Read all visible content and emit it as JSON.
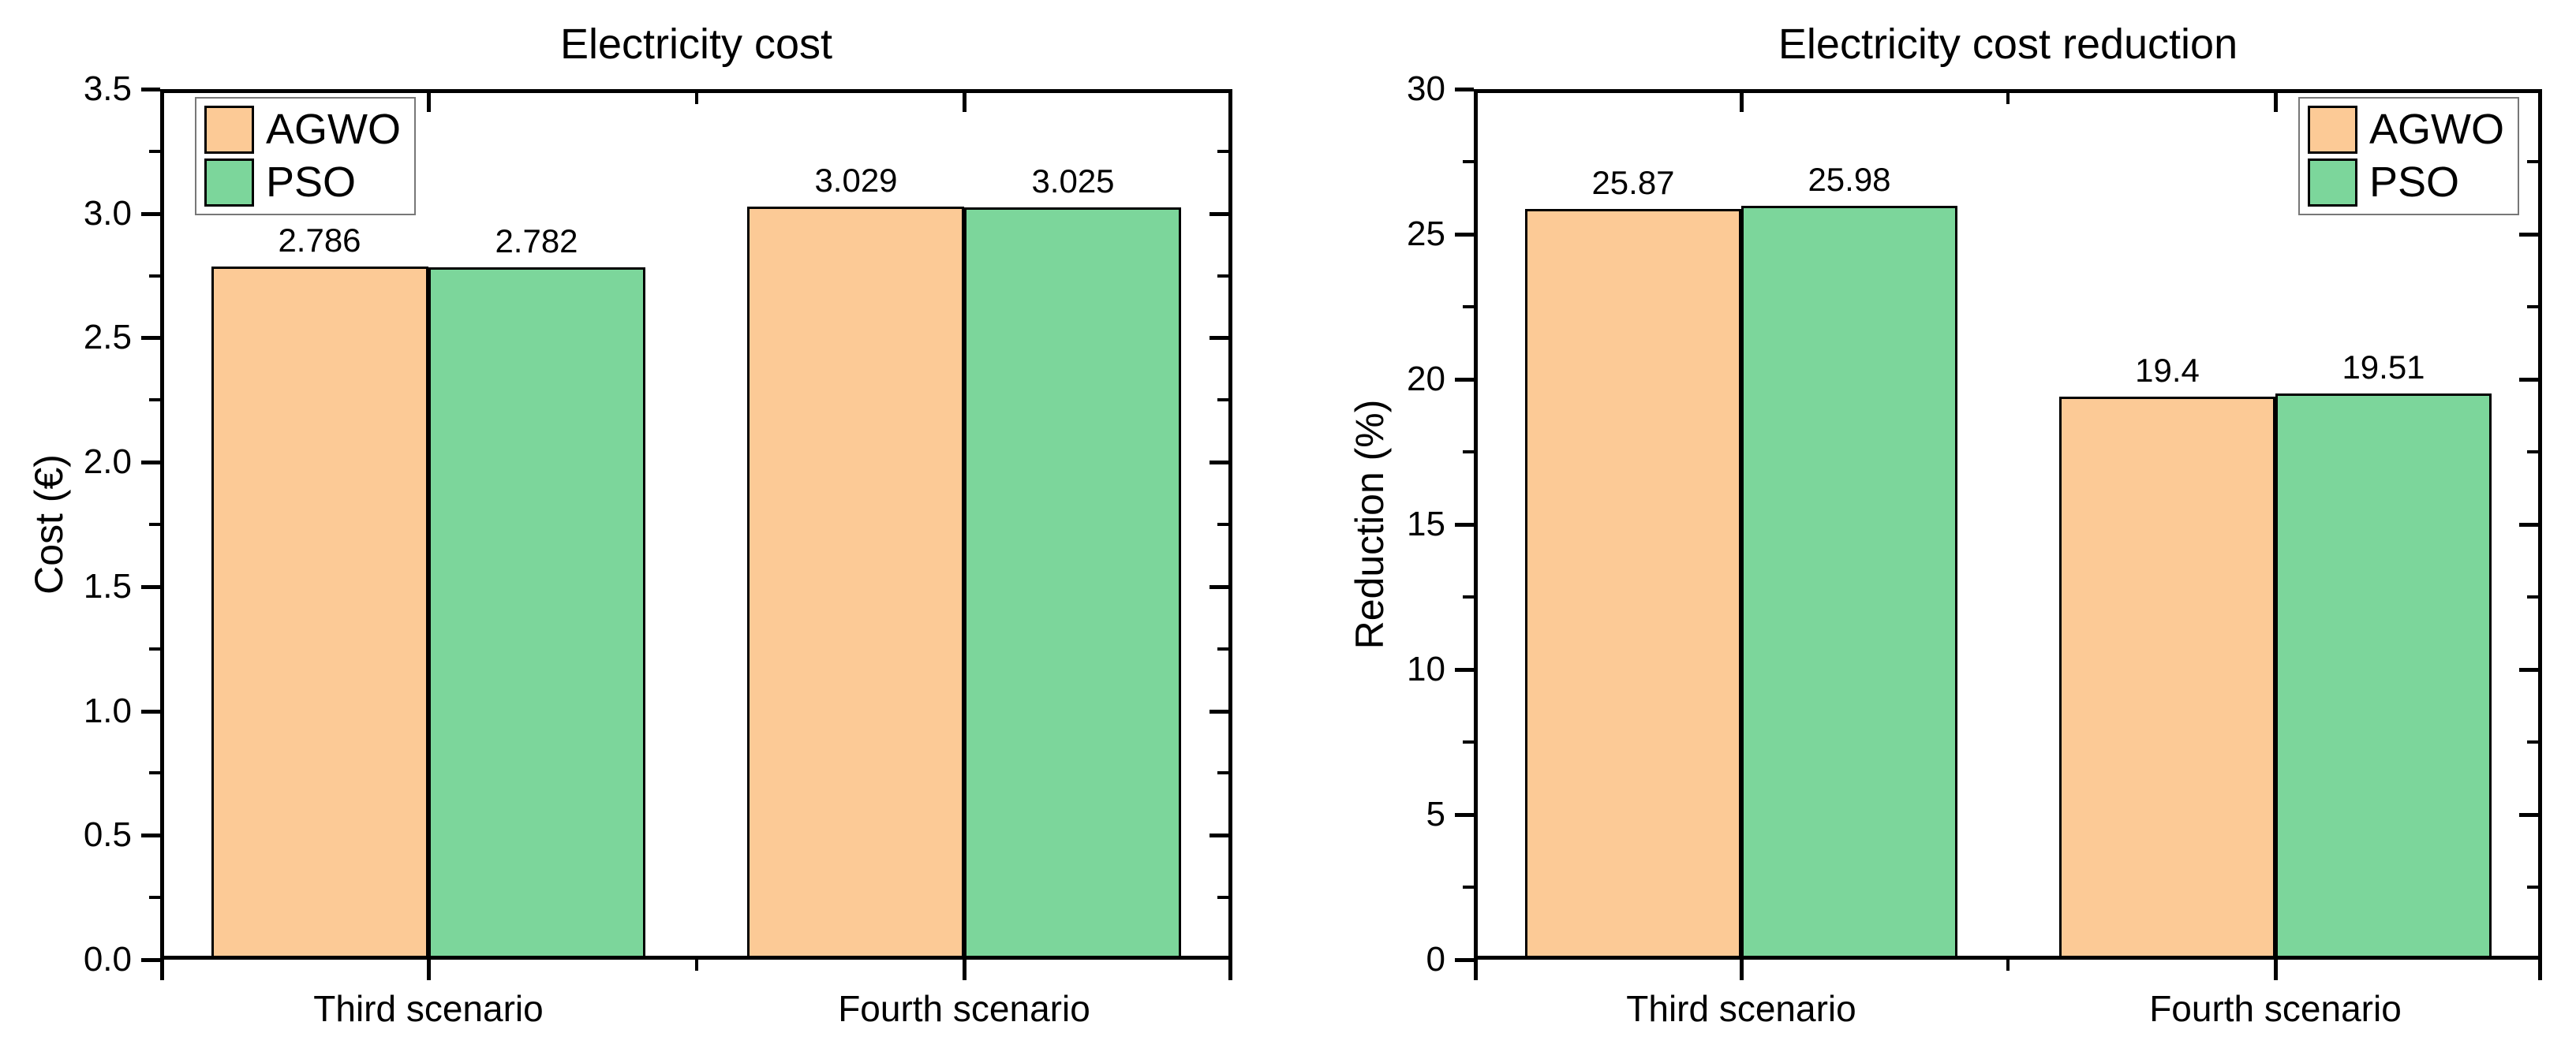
{
  "figure": {
    "background": "#ffffff",
    "text_color": "#000000",
    "axis_color": "#000000"
  },
  "chart_data": [
    {
      "type": "bar",
      "title": "Electricity cost",
      "xlabel": "",
      "ylabel": "Cost (€)",
      "categories": [
        "Third scenario",
        "Fourth scenario"
      ],
      "series": [
        {
          "name": "AGWO",
          "color": "#FCCA96",
          "values": [
            2.786,
            3.029
          ],
          "value_labels": [
            "2.786",
            "3.029"
          ]
        },
        {
          "name": "PSO",
          "color": "#7CD69B",
          "values": [
            2.782,
            3.025
          ],
          "value_labels": [
            "2.782",
            "3.025"
          ]
        }
      ],
      "ylim": [
        0,
        3.5
      ],
      "ytick_step": 0.5,
      "ytick_minor_step": 0.25,
      "ytick_labels": [
        "0.0",
        "0.5",
        "1.0",
        "1.5",
        "2.0",
        "2.5",
        "3.0",
        "3.5"
      ],
      "grid": false,
      "bar_edge_color": "#000000",
      "legend": {
        "entries": [
          "AGWO",
          "PSO"
        ],
        "position": "top-left"
      }
    },
    {
      "type": "bar",
      "title": "Electricity cost reduction",
      "xlabel": "",
      "ylabel": "Reduction (%)",
      "categories": [
        "Third scenario",
        "Fourth scenario"
      ],
      "series": [
        {
          "name": "AGWO",
          "color": "#FCCA96",
          "values": [
            25.87,
            19.4
          ],
          "value_labels": [
            "25.87",
            "19.4"
          ]
        },
        {
          "name": "PSO",
          "color": "#7CD69B",
          "values": [
            25.98,
            19.51
          ],
          "value_labels": [
            "25.98",
            "19.51"
          ]
        }
      ],
      "ylim": [
        0,
        30
      ],
      "ytick_step": 5,
      "ytick_minor_step": 2.5,
      "ytick_labels": [
        "0",
        "5",
        "10",
        "15",
        "20",
        "25",
        "30"
      ],
      "grid": false,
      "bar_edge_color": "#000000",
      "legend": {
        "entries": [
          "AGWO",
          "PSO"
        ],
        "position": "top-right"
      }
    }
  ]
}
